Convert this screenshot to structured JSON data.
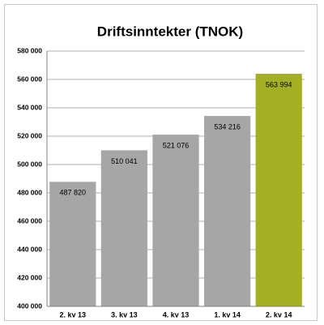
{
  "chart_data": {
    "type": "bar",
    "title": "Driftsinntekter (TNOK)",
    "categories": [
      "2. kv 13",
      "3. kv 13",
      "4. kv 13",
      "1. kv 14",
      "2. kv 14"
    ],
    "values": [
      487820,
      510041,
      521076,
      534216,
      563994
    ],
    "value_labels": [
      "487 820",
      "510 041",
      "521 076",
      "534 216",
      "563 994"
    ],
    "colors": [
      "#a6a6a6",
      "#a6a6a6",
      "#a6a6a6",
      "#a6a6a6",
      "#a4b024"
    ],
    "ylim": [
      400000,
      580000
    ],
    "yticks": [
      {
        "value": 400000,
        "label": "400 000"
      },
      {
        "value": 420000,
        "label": "420 000"
      },
      {
        "value": 440000,
        "label": "440 000"
      },
      {
        "value": 460000,
        "label": "460 000"
      },
      {
        "value": 480000,
        "label": "480 000"
      },
      {
        "value": 500000,
        "label": "500 000"
      },
      {
        "value": 520000,
        "label": "520 000"
      },
      {
        "value": 540000,
        "label": "540 000"
      },
      {
        "value": 560000,
        "label": "560 000"
      },
      {
        "value": 580000,
        "label": "580 000"
      }
    ],
    "grid": true
  }
}
